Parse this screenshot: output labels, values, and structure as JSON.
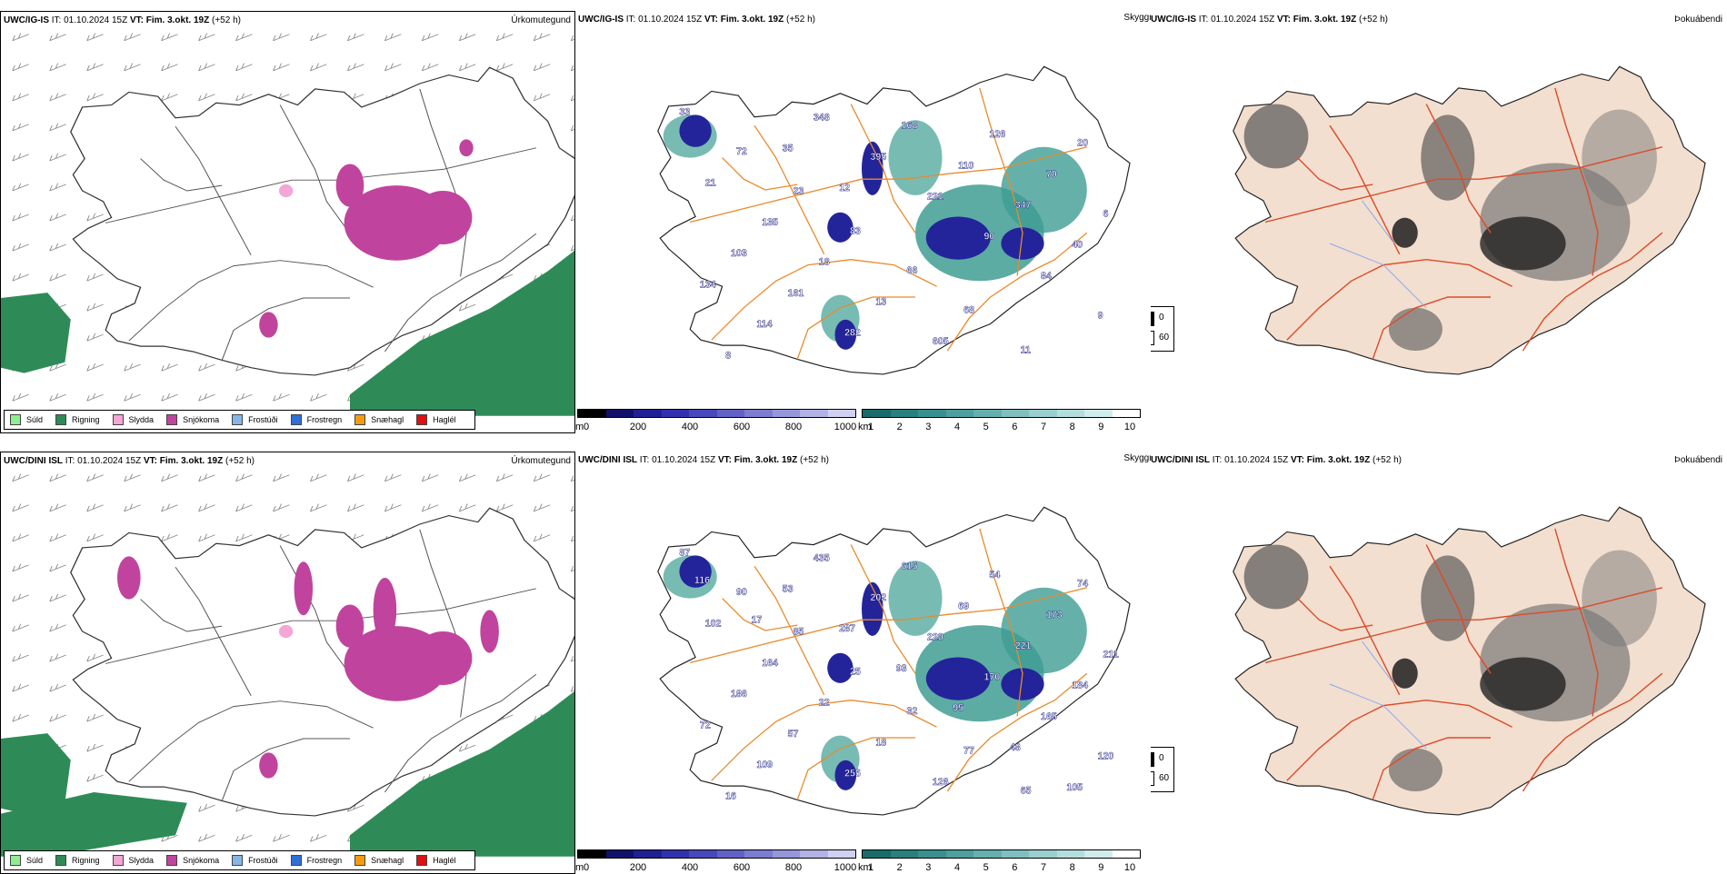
{
  "rows": [
    {
      "model": "UWC/IG-IS",
      "it_label": "IT:",
      "it_value": "01.10.2024 15Z",
      "vt_label": "VT:",
      "vt_value": "Fim. 3.okt. 19Z",
      "lead": "(+52 h)",
      "precip_title": "Úrkomutegund",
      "vis_title": "Skyggni",
      "fog_title": "Þokuábendi",
      "labels": [
        "33",
        "72",
        "23",
        "83",
        "66",
        "68",
        "11",
        "20",
        "21",
        "135",
        "18",
        "13",
        "605",
        "126",
        "70",
        "6",
        "103",
        "161",
        "282",
        "168",
        "110",
        "347",
        "40",
        "134",
        "114",
        "348",
        "395",
        "221",
        "90",
        "84",
        "9",
        "8",
        "35",
        "12"
      ]
    },
    {
      "model": "UWC/DINI ISL",
      "it_label": "IT:",
      "it_value": "01.10.2024 15Z",
      "vt_label": "VT:",
      "vt_value": "Fim. 3.okt. 19Z",
      "lead": "(+52 h)",
      "precip_title": "Úrkomutegund",
      "vis_title": "Skyggni",
      "fog_title": "Þokuábendi",
      "labels": [
        "87",
        "90",
        "85",
        "25",
        "32",
        "77",
        "65",
        "74",
        "102",
        "164",
        "22",
        "18",
        "126",
        "54",
        "173",
        "211",
        "186",
        "57",
        "255",
        "615",
        "69",
        "221",
        "184",
        "72",
        "109",
        "435",
        "202",
        "220",
        "170",
        "165",
        "120",
        "16",
        "53",
        "287",
        "93",
        "95",
        "48",
        "105",
        "116",
        "17"
      ]
    }
  ],
  "precip_legend": [
    {
      "label": "Súld",
      "color": "#90ee90"
    },
    {
      "label": "Rigning",
      "color": "#2e8b57"
    },
    {
      "label": "Slydda",
      "color": "#f4a6d7"
    },
    {
      "label": "Snjókoma",
      "color": "#c0449e"
    },
    {
      "label": "Frostúði",
      "color": "#87b5e8"
    },
    {
      "label": "Frostregn",
      "color": "#2f6fd6"
    },
    {
      "label": "Snæhagl",
      "color": "#f39c12"
    },
    {
      "label": "Haglél",
      "color": "#e01010"
    }
  ],
  "ceiling_bar": {
    "unit": "m",
    "ticks": [
      "0",
      "200",
      "400",
      "600",
      "800",
      "1000"
    ],
    "colors": [
      "#000000",
      "#11116b",
      "#202095",
      "#3131b0",
      "#4848bd",
      "#6262c6",
      "#7c7cd0",
      "#9696db",
      "#b2b2e6",
      "#d0d0f2"
    ]
  },
  "vis_bar": {
    "unit": "km",
    "ticks": [
      "1",
      "2",
      "3",
      "4",
      "5",
      "6",
      "7",
      "8",
      "9",
      "10"
    ],
    "colors": [
      "#1a6b6b",
      "#2a7f7f",
      "#3a9090",
      "#4e9f9f",
      "#66afaf",
      "#80bfbf",
      "#9acfcf",
      "#b4dede",
      "#d0ecec",
      "#ffffff"
    ]
  },
  "fog_legend": {
    "v0": "0",
    "v1": "60",
    "c0": "#000000",
    "c1": "#ffffff"
  },
  "colors": {
    "snow": "#c0449e",
    "rain": "#2e8b57",
    "sleet": "#f4a6d7",
    "ceiling": "#24249a",
    "vis": "#3f9e93",
    "roads": "#e98a2c",
    "fogland": "#f2dfcf",
    "fogroads": "#dd4b2a",
    "foglakes": "#8aa6f0"
  }
}
